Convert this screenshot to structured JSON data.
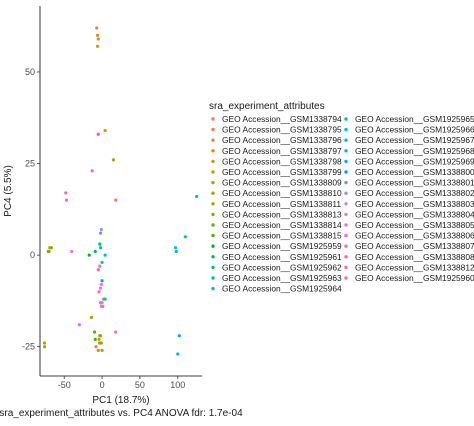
{
  "chart_data": {
    "type": "scatter",
    "title": "",
    "xlabel": "PC1 (18.7%)",
    "ylabel": "PC4 (5.5%)",
    "caption": "sra_experiment_attributes vs. PC4 ANOVA fdr: 1.7e-04",
    "xlim": [
      -82,
      132
    ],
    "ylim": [
      -33,
      68
    ],
    "x_ticks": [
      -50,
      0,
      50,
      100
    ],
    "y_ticks": [
      -25,
      0,
      25,
      50
    ],
    "x_tick_labels": [
      "-50",
      "0",
      "50",
      "100"
    ],
    "y_tick_labels": [
      "-25",
      "0",
      "25",
      "50"
    ],
    "grid": false,
    "legend_title": "sra_experiment_attributes",
    "legend_position": "right",
    "legend_columns": 2,
    "series": [
      {
        "name": "GEO Accession__GSM1338794",
        "color": "#F8766D",
        "points": [
          [
            -5,
            33
          ],
          [
            18,
            15
          ],
          [
            0,
            -13
          ]
        ]
      },
      {
        "name": "GEO Accession__GSM1338795",
        "color": "#F47D47",
        "points": [
          [
            1,
            -14
          ],
          [
            -8,
            -25
          ]
        ]
      },
      {
        "name": "GEO Accession__GSM1338796",
        "color": "#EB8335",
        "points": [
          [
            -7,
            62
          ],
          [
            -5,
            59
          ],
          [
            2,
            -12
          ]
        ]
      },
      {
        "name": "GEO Accession__GSM1338797",
        "color": "#E18A00",
        "points": [
          [
            -6,
            60
          ],
          [
            -2,
            -13
          ]
        ]
      },
      {
        "name": "GEO Accession__GSM1338798",
        "color": "#D69100",
        "points": [
          [
            -6,
            57
          ],
          [
            -3,
            -24
          ],
          [
            0,
            -26
          ]
        ]
      },
      {
        "name": "GEO Accession__GSM1338799",
        "color": "#C99800",
        "points": [
          [
            4,
            34
          ],
          [
            -4,
            -23
          ],
          [
            -2,
            -22
          ]
        ]
      },
      {
        "name": "GEO Accession__GSM1338809",
        "color": "#BB9E00",
        "points": [
          [
            -69,
            2
          ],
          [
            -5,
            -26
          ],
          [
            -1,
            -24
          ]
        ]
      },
      {
        "name": "GEO Accession__GSM1338810",
        "color": "#ABA300",
        "points": [
          [
            15,
            26
          ],
          [
            -14,
            -17
          ],
          [
            -76,
            -24
          ]
        ]
      },
      {
        "name": "GEO Accession__GSM1338811",
        "color": "#99A800",
        "points": [
          [
            -70,
            1
          ],
          [
            -76,
            -25
          ]
        ]
      },
      {
        "name": "GEO Accession__GSM1338813",
        "color": "#85AD00",
        "points": [
          [
            -67,
            2
          ],
          [
            -3,
            -22
          ],
          [
            -3,
            -24
          ]
        ]
      },
      {
        "name": "GEO Accession__GSM1338814",
        "color": "#6BB100",
        "points": [
          [
            -71,
            1
          ]
        ]
      },
      {
        "name": "GEO Accession__GSM1338815",
        "color": "#4BB400",
        "points": [
          [
            -10,
            -21
          ],
          [
            -9,
            -23
          ]
        ]
      },
      {
        "name": "GEO Accession__GSM1925959",
        "color": "#00B81F",
        "points": [
          [
            -17,
            0
          ]
        ]
      },
      {
        "name": "GEO Accession__GSM1925961",
        "color": "#00BA59",
        "points": [
          [
            -9,
            1
          ]
        ]
      },
      {
        "name": "GEO Accession__GSM1925962",
        "color": "#00BD82",
        "points": [
          [
            -3,
            3
          ]
        ]
      },
      {
        "name": "GEO Accession__GSM1925963",
        "color": "#00C0A1",
        "points": [
          [
            -2,
            2
          ]
        ]
      },
      {
        "name": "GEO Accession__GSM1925964",
        "color": "#00C0B7",
        "points": [
          [
            0,
            -2
          ]
        ]
      },
      {
        "name": "GEO Accession__GSM1925965",
        "color": "#00BFC4",
        "points": [
          [
            125,
            16
          ]
        ]
      },
      {
        "name": "GEO Accession__GSM1925966",
        "color": "#00BDD6",
        "points": [
          [
            97,
            2
          ],
          [
            4,
            -12
          ]
        ]
      },
      {
        "name": "GEO Accession__GSM1925967",
        "color": "#00B8E7",
        "points": [
          [
            110,
            5
          ],
          [
            4,
            0
          ]
        ]
      },
      {
        "name": "GEO Accession__GSM1925968",
        "color": "#00B2F3",
        "points": [
          [
            98,
            1
          ],
          [
            100,
            -27
          ]
        ]
      },
      {
        "name": "GEO Accession__GSM1925969",
        "color": "#00AAFE",
        "points": [
          [
            102,
            -22
          ]
        ]
      },
      {
        "name": "GEO Accession__GSM1338800",
        "color": "#00A0FF",
        "points": [
          [
            0,
            -7
          ]
        ]
      },
      {
        "name": "GEO Accession__GSM1338801",
        "color": "#6798FF",
        "points": [
          [
            -2,
            6
          ]
        ]
      },
      {
        "name": "GEO Accession__GSM1338802",
        "color": "#978FFF",
        "points": [
          [
            -1,
            7
          ]
        ]
      },
      {
        "name": "GEO Accession__GSM1338803",
        "color": "#BC83FF",
        "points": [
          [
            -1,
            -13
          ]
        ]
      },
      {
        "name": "GEO Accession__GSM1338804",
        "color": "#D57CF6",
        "points": [
          [
            -1,
            -14
          ]
        ]
      },
      {
        "name": "GEO Accession__GSM1338805",
        "color": "#E56FEC",
        "points": [
          [
            -40,
            1
          ],
          [
            -2,
            -9
          ],
          [
            -1,
            -8
          ]
        ]
      },
      {
        "name": "GEO Accession__GSM1338806",
        "color": "#F166DE",
        "points": [
          [
            -4,
            -10
          ],
          [
            -30,
            -19
          ]
        ]
      },
      {
        "name": "GEO Accession__GSM1338807",
        "color": "#FA62D0",
        "points": [
          [
            -13,
            23
          ],
          [
            -3,
            -3
          ]
        ]
      },
      {
        "name": "GEO Accession__GSM1338808",
        "color": "#FF61C1",
        "points": [
          [
            -48,
            17
          ],
          [
            -5,
            33
          ]
        ]
      },
      {
        "name": "GEO Accession__GSM1338812",
        "color": "#FF63B0",
        "points": [
          [
            -47,
            15
          ],
          [
            -5,
            -4
          ]
        ]
      },
      {
        "name": "GEO Accession__GSM1925960",
        "color": "#FF699C",
        "points": [
          [
            18,
            -21
          ]
        ]
      }
    ]
  }
}
